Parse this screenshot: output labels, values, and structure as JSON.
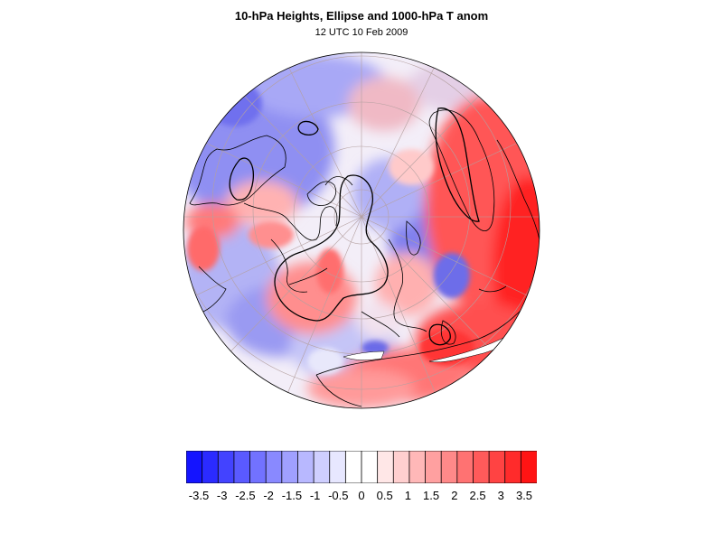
{
  "map": {
    "title": "10-hPa Heights, Ellipse and 1000-hPa T anom",
    "subtitle": "12 UTC 10 Feb 2009",
    "projection": "polar-orthographic",
    "colors": {
      "neg_max": "#1a1aff",
      "pos_max": "#ff1a1a",
      "coast": "#000000",
      "contour": "#000000",
      "graticule": "#b4a0a0"
    },
    "colorbar": {
      "labels": [
        "-3.5",
        "-3",
        "-2.5",
        "-2",
        "-1.5",
        "-1",
        "-0.5",
        "0",
        "0.5",
        "1",
        "1.5",
        "2",
        "2.5",
        "3",
        "3.5"
      ],
      "colors": [
        "#1414ff",
        "#2b2bff",
        "#4343ff",
        "#5a5aff",
        "#7272ff",
        "#8989ff",
        "#a0a0ff",
        "#b8b8ff",
        "#cfcfff",
        "#e7e7ff",
        "#ffffff",
        "#ffffff",
        "#ffe7e7",
        "#ffcfcf",
        "#ffb8b8",
        "#ffa0a0",
        "#ff8989",
        "#ff7272",
        "#ff5a5a",
        "#ff4343",
        "#ff2b2b",
        "#ff1414"
      ]
    }
  }
}
